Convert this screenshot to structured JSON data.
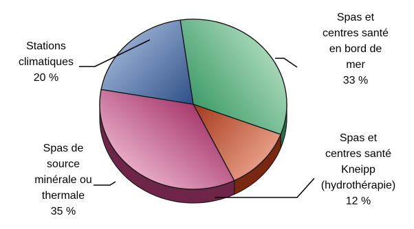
{
  "chart_data": {
    "type": "pie",
    "title": "",
    "legend": "none",
    "slices": [
      {
        "label_lines": [
          "Spas et",
          "centres santé",
          "en bord de",
          "mer"
        ],
        "value": 33,
        "value_label": "33 %",
        "color": "#3f9c6a",
        "color_light": "#a4d6b6",
        "side_color": "#2a6e48"
      },
      {
        "label_lines": [
          "Spas et",
          "centres santé",
          "Kneipp",
          "(hydrothérapie)"
        ],
        "value": 12,
        "value_label": "12 %",
        "color": "#a6391b",
        "color_light": "#e59b83",
        "side_color": "#7a2810"
      },
      {
        "label_lines": [
          "Spas de",
          "source",
          "minérale ou",
          "thermale"
        ],
        "value": 35,
        "value_label": "35 %",
        "color": "#a83a6e",
        "color_light": "#e6a9c4",
        "side_color": "#6e2548"
      },
      {
        "label_lines": [
          "Stations",
          "climatiques"
        ],
        "value": 20,
        "value_label": "20 %",
        "color": "#2f4f85",
        "color_light": "#8fa8ce",
        "side_color": "#1e3560"
      }
    ]
  }
}
